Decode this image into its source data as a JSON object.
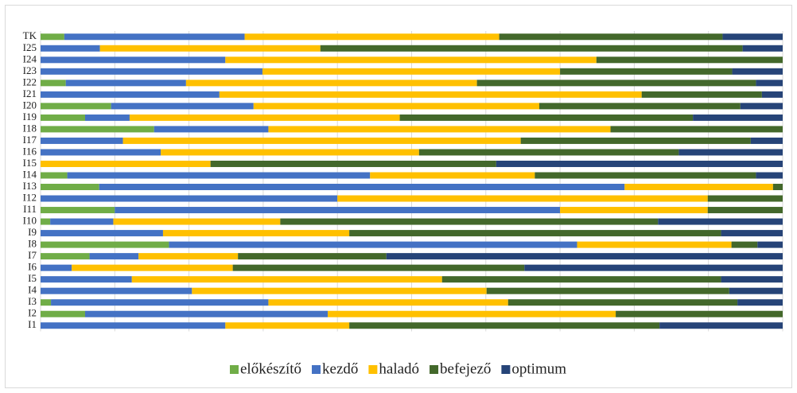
{
  "chart_data": {
    "type": "stacked-barh",
    "categories": [
      "I1",
      "I2",
      "I3",
      "I4",
      "I5",
      "I6",
      "I7",
      "I8",
      "I9",
      "I10",
      "I11",
      "I12",
      "I13",
      "I14",
      "I15",
      "I16",
      "I17",
      "I18",
      "I19",
      "I20",
      "I21",
      "I22",
      "I23",
      "I24",
      "I25",
      "TK"
    ],
    "series": [
      {
        "name": "előkészítő",
        "color": "#70ad47",
        "values": [
          0,
          6.0,
          1.4,
          0,
          0,
          0,
          6.6,
          17.3,
          0,
          1.3,
          10,
          0,
          7.9,
          3.6,
          0,
          0,
          0,
          15.3,
          6.0,
          9.5,
          0,
          3.4,
          0,
          0,
          0,
          3.2
        ]
      },
      {
        "name": "kezdő",
        "color": "#4472c4",
        "values": [
          24.9,
          32.7,
          29.3,
          20.4,
          12.3,
          4.2,
          6.6,
          55.0,
          16.5,
          8.5,
          60,
          40.0,
          70.8,
          40.8,
          0,
          16.2,
          11.1,
          15.4,
          6.0,
          19.2,
          24.1,
          16.2,
          29.9,
          24.9,
          8.0,
          24.3
        ]
      },
      {
        "name": "haladó",
        "color": "#ffc000",
        "values": [
          16.7,
          38.8,
          32.3,
          39.7,
          41.8,
          21.7,
          13.4,
          20.8,
          25.1,
          22.5,
          19.9,
          49.9,
          20.0,
          22.2,
          22.9,
          34.8,
          53.6,
          46.1,
          36.4,
          38.5,
          56.9,
          39.2,
          40.1,
          50.0,
          29.7,
          34.3
        ]
      },
      {
        "name": "befejező",
        "color": "#43682b",
        "values": [
          41.8,
          22.5,
          30.9,
          32.7,
          37.6,
          39.3,
          20.0,
          3.5,
          50.1,
          50.9,
          10.1,
          10.1,
          1.3,
          29.8,
          38.5,
          35.0,
          31.0,
          23.2,
          39.5,
          27.1,
          16.2,
          37.6,
          23.2,
          25.1,
          56.9,
          30.1
        ]
      },
      {
        "name": "optimum",
        "color": "#264478",
        "values": [
          16.6,
          0,
          6.1,
          7.2,
          8.3,
          34.8,
          53.4,
          3.4,
          8.3,
          16.8,
          0,
          0,
          0,
          3.6,
          38.6,
          14.0,
          4.3,
          0,
          12.1,
          5.7,
          2.8,
          3.6,
          6.8,
          0,
          5.4,
          8.1
        ]
      }
    ],
    "xlim": [
      0,
      100
    ],
    "xticks": [
      0,
      10,
      20,
      30,
      40,
      50,
      60,
      70,
      80,
      90,
      100
    ],
    "grid": true,
    "legend": "bottom"
  }
}
